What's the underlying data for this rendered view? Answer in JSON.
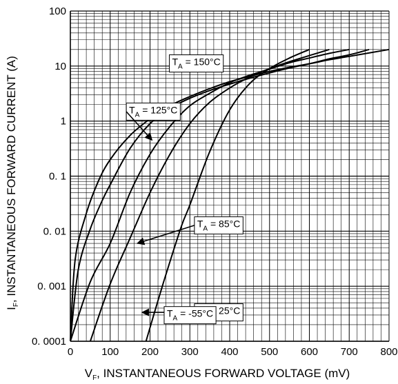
{
  "chart_data": {
    "type": "line",
    "xlabel": "V_F, INSTANTANEOUS FORWARD VOLTAGE (mV)",
    "ylabel": "I_F, INSTANTANEOUS FORWARD CURRENT (A)",
    "xlabel_parts": {
      "main": "V",
      "sub": "F",
      "rest": ", INSTANTANEOUS FORWARD VOLTAGE (mV)"
    },
    "ylabel_parts": {
      "main": "I",
      "sub": "F",
      "rest": ", INSTANTANEOUS FORWARD CURRENT (A)"
    },
    "xlim": [
      0,
      800
    ],
    "ylim": [
      0.0001,
      100
    ],
    "y_scale": "log",
    "grid": true,
    "x_ticks": [
      {
        "value": 0,
        "label": "0"
      },
      {
        "value": 100,
        "label": "100"
      },
      {
        "value": 200,
        "label": "200"
      },
      {
        "value": 300,
        "label": "300"
      },
      {
        "value": 400,
        "label": "400"
      },
      {
        "value": 500,
        "label": "500"
      },
      {
        "value": 600,
        "label": "600"
      },
      {
        "value": 700,
        "label": "700"
      },
      {
        "value": 800,
        "label": "800"
      }
    ],
    "y_ticks": [
      {
        "value": 100,
        "label": "100"
      },
      {
        "value": 10,
        "label": "10"
      },
      {
        "value": 1,
        "label": "1"
      },
      {
        "value": 0.1,
        "label": "0. 1"
      },
      {
        "value": 0.01,
        "label": "0. 01"
      },
      {
        "value": 0.001,
        "label": "0. 001"
      },
      {
        "value": 0.0001,
        "label": "0. 0001"
      }
    ],
    "series": [
      {
        "name": "T_A = 150°C",
        "label": {
          "main": "T",
          "sub": "A",
          "rest": " = 150°C",
          "ax": 245,
          "ay": 12,
          "arrow": false
        },
        "x": [
          0,
          12,
          40,
          70,
          100,
          150,
          200,
          250,
          300,
          350,
          400,
          450,
          500,
          550,
          600,
          650,
          700,
          800
        ],
        "y": [
          0.0001,
          0.003,
          0.021,
          0.08,
          0.2,
          0.55,
          1.1,
          1.9,
          2.8,
          3.9,
          5.2,
          6.5,
          8,
          9.5,
          11,
          13,
          15,
          20
        ]
      },
      {
        "name": "T_A = 125°C",
        "label": {
          "main": "T",
          "sub": "A",
          "rest": " = 125°C",
          "ax": 137,
          "ay": 1.6,
          "tx": 205,
          "ty": 0.45,
          "arrow": true
        },
        "x": [
          0,
          20,
          50,
          80,
          100,
          150,
          200,
          250,
          300,
          350,
          400,
          450,
          500,
          550,
          600,
          650,
          700,
          750
        ],
        "y": [
          0.0001,
          0.002,
          0.011,
          0.036,
          0.07,
          0.32,
          0.9,
          1.7,
          2.6,
          3.6,
          4.7,
          6,
          7.5,
          9.2,
          11,
          13.5,
          16,
          20
        ]
      },
      {
        "name": "T_A = 85°C",
        "label": {
          "main": "T",
          "sub": "A",
          "rest": " = 85°C",
          "ax": 308,
          "ay": 0.0137,
          "tx": 168,
          "ty": 0.006,
          "arrow": true
        },
        "x": [
          0,
          50,
          100,
          150,
          200,
          250,
          300,
          350,
          400,
          450,
          500,
          550,
          600,
          650,
          700
        ],
        "y": [
          0.0001,
          0.0012,
          0.006,
          0.05,
          0.25,
          0.8,
          1.9,
          3.2,
          5,
          6.8,
          8.8,
          11.5,
          14,
          17,
          20
        ]
      },
      {
        "name": "T_A = 25°C",
        "label": {
          "main": "T",
          "sub": "A",
          "rest": " = 25°C",
          "ax": 308,
          "ay": 0.00036,
          "tx": 180,
          "ty": 0.0002,
          "arrow": true
        },
        "x": [
          50,
          100,
          150,
          200,
          250,
          300,
          350,
          400,
          450,
          500,
          550,
          600,
          650
        ],
        "y": [
          0.0001,
          0.0011,
          0.0075,
          0.05,
          0.25,
          0.9,
          2.2,
          4,
          6.3,
          9,
          12,
          15.5,
          20
        ]
      },
      {
        "name": "T_A = -55°C",
        "label": {
          "main": "T",
          "sub": "A",
          "rest": " = -55°C",
          "ax": 232,
          "ay": 0.00032,
          "arrow": false
        },
        "x": [
          190,
          220,
          250,
          280,
          300,
          350,
          400,
          450,
          500,
          550,
          600
        ],
        "y": [
          0.0001,
          0.00055,
          0.0028,
          0.013,
          0.03,
          0.28,
          1.6,
          4.8,
          9,
          14,
          20
        ]
      }
    ]
  }
}
